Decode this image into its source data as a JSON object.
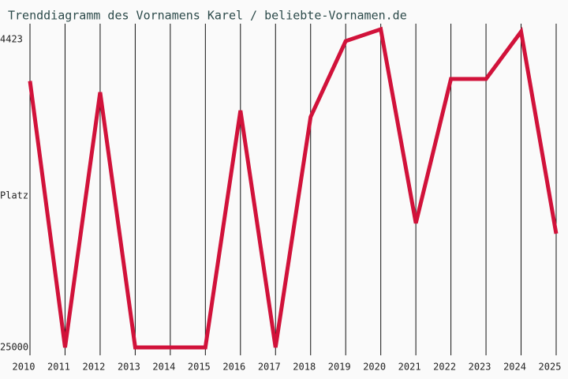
{
  "chart_data": {
    "type": "line",
    "title": "Trenddiagramm des Vornamens Karel / beliebte-Vornamen.de",
    "y_label": "Platz",
    "x": [
      2010,
      2011,
      2012,
      2013,
      2014,
      2015,
      2016,
      2017,
      2018,
      2019,
      2020,
      2021,
      2022,
      2023,
      2024,
      2025
    ],
    "series": [
      {
        "name": "Karel",
        "color": "#d1123a",
        "values": [
          7200,
          25000,
          7950,
          25000,
          25000,
          25000,
          9170,
          25000,
          9600,
          4530,
          3740,
          16700,
          7060,
          7060,
          3900,
          17400
        ]
      }
    ],
    "xlim": [
      2010,
      2025
    ],
    "xticks": [
      2010,
      2011,
      2012,
      2013,
      2014,
      2015,
      2016,
      2017,
      2018,
      2019,
      2020,
      2021,
      2022,
      2023,
      2024,
      2025
    ],
    "ylim": [
      25000,
      4423
    ],
    "yticks": [
      4423,
      25000
    ],
    "grid": true
  }
}
